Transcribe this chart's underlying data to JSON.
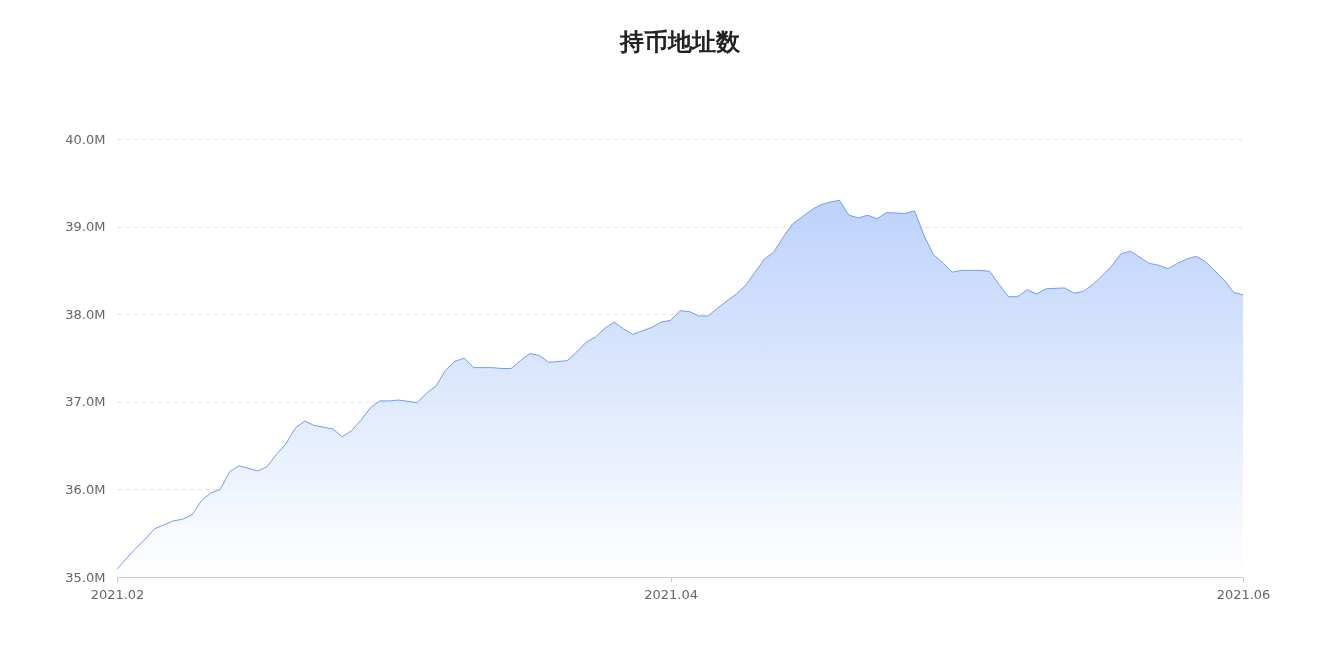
{
  "chart_data": {
    "type": "area",
    "title": "持币地址数",
    "x": [
      "2021-02-01",
      "2021-02-03",
      "2021-02-04",
      "2021-02-05",
      "2021-02-07",
      "2021-02-08",
      "2021-02-09",
      "2021-02-10",
      "2021-02-11",
      "2021-02-12",
      "2021-02-13",
      "2021-02-14",
      "2021-02-16",
      "2021-02-17",
      "2021-02-18",
      "2021-02-19",
      "2021-02-20",
      "2021-02-21",
      "2021-02-22",
      "2021-02-24",
      "2021-02-25",
      "2021-02-26",
      "2021-02-27",
      "2021-02-28",
      "2021-03-01",
      "2021-03-02",
      "2021-03-03",
      "2021-03-05",
      "2021-03-06",
      "2021-03-07",
      "2021-03-08",
      "2021-03-09",
      "2021-03-10",
      "2021-03-11",
      "2021-03-13",
      "2021-03-14",
      "2021-03-15",
      "2021-03-16",
      "2021-03-17",
      "2021-03-18",
      "2021-03-19",
      "2021-03-21",
      "2021-03-22",
      "2021-03-23",
      "2021-03-24",
      "2021-03-25",
      "2021-03-26",
      "2021-03-27",
      "2021-03-28",
      "2021-03-30",
      "2021-03-31",
      "2021-04-01",
      "2021-04-02",
      "2021-04-03",
      "2021-04-04",
      "2021-04-05",
      "2021-04-06",
      "2021-04-08",
      "2021-04-09",
      "2021-04-10",
      "2021-04-11",
      "2021-04-12",
      "2021-04-13",
      "2021-04-14",
      "2021-04-16",
      "2021-04-17",
      "2021-04-18",
      "2021-04-19",
      "2021-04-20",
      "2021-04-21",
      "2021-04-22",
      "2021-04-23",
      "2021-04-24",
      "2021-04-26",
      "2021-04-27",
      "2021-04-28",
      "2021-04-29",
      "2021-04-30",
      "2021-05-01",
      "2021-05-02",
      "2021-05-04",
      "2021-05-05",
      "2021-05-06",
      "2021-05-07",
      "2021-05-08",
      "2021-05-09",
      "2021-05-10",
      "2021-05-11",
      "2021-05-13",
      "2021-05-14",
      "2021-05-15",
      "2021-05-16",
      "2021-05-17",
      "2021-05-18",
      "2021-05-19",
      "2021-05-20",
      "2021-05-22",
      "2021-05-23",
      "2021-05-24",
      "2021-05-25",
      "2021-05-26",
      "2021-05-27",
      "2021-05-28",
      "2021-05-30",
      "2021-05-31",
      "2021-06-01"
    ],
    "series": [
      {
        "color": "#6f9ef7",
        "values": [
          35.09,
          35.33,
          35.43,
          35.55,
          35.64,
          35.66,
          35.71,
          35.87,
          35.96,
          36.0,
          36.2,
          36.27,
          36.21,
          36.26,
          36.4,
          36.52,
          36.7,
          36.78,
          36.73,
          36.69,
          36.6,
          36.67,
          36.79,
          36.93,
          37.01,
          37.01,
          37.02,
          36.99,
          37.1,
          37.18,
          37.36,
          37.46,
          37.5,
          37.39,
          37.39,
          37.38,
          37.38,
          37.47,
          37.55,
          37.53,
          37.45,
          37.47,
          37.57,
          37.68,
          37.74,
          37.84,
          37.91,
          37.83,
          37.77,
          37.85,
          37.91,
          37.93,
          38.04,
          38.03,
          37.98,
          37.98,
          38.07,
          38.23,
          38.33,
          38.48,
          38.63,
          38.71,
          38.88,
          39.03,
          39.19,
          39.25,
          39.28,
          39.3,
          39.13,
          39.1,
          39.13,
          39.09,
          39.16,
          39.15,
          39.18,
          38.9,
          38.68,
          38.59,
          38.48,
          38.5,
          38.5,
          38.49,
          38.34,
          38.2,
          38.2,
          38.28,
          38.23,
          38.29,
          38.3,
          38.24,
          38.26,
          38.34,
          38.44,
          38.55,
          38.69,
          38.72,
          38.58,
          38.56,
          38.52,
          38.58,
          38.63,
          38.66,
          38.6,
          38.39,
          38.25,
          38.22
        ]
      }
    ],
    "xlim": [
      "2021-02-01",
      "2021-06-01"
    ],
    "xticks": [
      {
        "value": "2021-02-01",
        "label": "2021.02"
      },
      {
        "value": "2021-04-01",
        "label": "2021.04"
      },
      {
        "value": "2021-06-01",
        "label": "2021.06"
      }
    ],
    "ylim": [
      35,
      40
    ],
    "yticks": [
      {
        "value": 35,
        "label": "35.0M"
      },
      {
        "value": 36,
        "label": "36.0M"
      },
      {
        "value": 37,
        "label": "37.0M"
      },
      {
        "value": 38,
        "label": "38.0M"
      },
      {
        "value": 39,
        "label": "39.0M"
      },
      {
        "value": 40,
        "label": "40.0M"
      }
    ],
    "grid": "y"
  }
}
